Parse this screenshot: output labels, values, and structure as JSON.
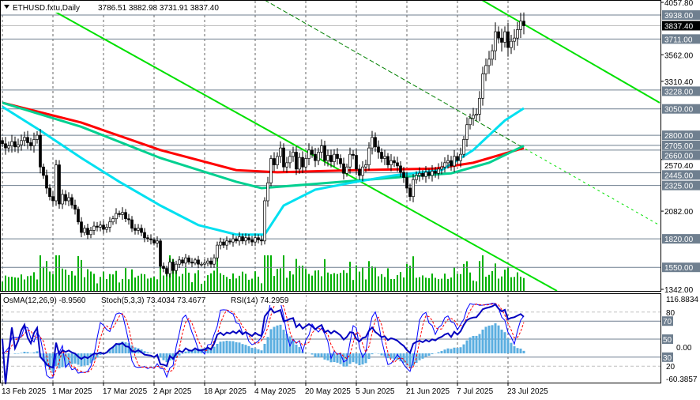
{
  "header": {
    "symbol_label": "ETHUSD.fxtu,Daily",
    "ohlc": "3786.51 3882.98 3731.91 3837.40",
    "dropdown_icon": "triangle-down-icon"
  },
  "indicator_header": {
    "osma": "OsMA(12,26,9) -8.9560",
    "stoch": "Stoch(5,3,3) 73.4034 73.4677",
    "rsi": "RSI(14) 74.2959"
  },
  "chart_data": {
    "type": "candlestick",
    "title": "",
    "ylim": [
      1342.0,
      4057.8
    ],
    "price_ticks": [
      "4057.80",
      "3562.00",
      "3310.40",
      "2570.40",
      "2082.00",
      "1342.00"
    ],
    "date_ticks": [
      {
        "day": 0,
        "label": "13 Feb 2025"
      },
      {
        "day": 16,
        "label": "1 Mar 2025"
      },
      {
        "day": 32,
        "label": "17 Mar 2025"
      },
      {
        "day": 48,
        "label": "2 Apr 2025"
      },
      {
        "day": 64,
        "label": "18 Apr 2025"
      },
      {
        "day": 80,
        "label": "4 May 2025"
      },
      {
        "day": 96,
        "label": "20 May 2025"
      },
      {
        "day": 112,
        "label": "5 Jun 2025"
      },
      {
        "day": 128,
        "label": "21 Jun 2025"
      },
      {
        "day": 144,
        "label": "7 Jul 2025"
      },
      {
        "day": 160,
        "label": "23 Jul 2025"
      }
    ],
    "current_price": "3837.40",
    "levels": [
      "3938.00",
      "3711.00",
      "3228.00",
      "3050.00",
      "2800.00",
      "2705.00",
      "2660.00",
      "2445.00",
      "2325.00",
      "1820.00",
      "1550.00"
    ],
    "closes": [
      2720,
      2680,
      2700,
      2740,
      2690,
      2710,
      2750,
      2780,
      2730,
      2700,
      2760,
      2800,
      2500,
      2420,
      2300,
      2220,
      2180,
      2520,
      2150,
      2240,
      2180,
      2210,
      2140,
      2100,
      1980,
      1880,
      1920,
      1860,
      1900,
      1940,
      1930,
      1950,
      1910,
      1930,
      1980,
      2010,
      2060,
      2050,
      2070,
      2010,
      2000,
      1920,
      1900,
      1920,
      1880,
      1830,
      1820,
      1810,
      1780,
      1800,
      1560,
      1540,
      1490,
      1600,
      1520,
      1580,
      1620,
      1590,
      1640,
      1600,
      1590,
      1620,
      1580,
      1580,
      1590,
      1610,
      1580,
      1640,
      1760,
      1790,
      1760,
      1800,
      1790,
      1820,
      1800,
      1840,
      1800,
      1830,
      1810,
      1790,
      1830,
      1810,
      1800,
      2180,
      2350,
      2580,
      2520,
      2600,
      2680,
      2500,
      2540,
      2600,
      2640,
      2480,
      2590,
      2500,
      2580,
      2660,
      2620,
      2560,
      2640,
      2700,
      2560,
      2610,
      2550,
      2620,
      2580,
      2530,
      2440,
      2500,
      2620,
      2610,
      2480,
      2420,
      2500,
      2520,
      2680,
      2780,
      2690,
      2640,
      2580,
      2600,
      2520,
      2560,
      2540,
      2510,
      2450,
      2400,
      2300,
      2220,
      2380,
      2420,
      2440,
      2410,
      2450,
      2420,
      2460,
      2440,
      2480,
      2500,
      2540,
      2560,
      2510,
      2600,
      2560,
      2620,
      2760,
      2900,
      2960,
      2990,
      3000,
      3150,
      3380,
      3460,
      3520,
      3600,
      3780,
      3720,
      3680,
      3780,
      3630,
      3690,
      3720,
      3800,
      3880,
      3837.4
    ],
    "first_open": 2750,
    "moving_averages": [
      {
        "color": "#ff0000",
        "points": [
          [
            0,
            3108
          ],
          [
            25,
            2920
          ],
          [
            50,
            2660
          ],
          [
            74,
            2470
          ],
          [
            87,
            2450
          ],
          [
            112,
            2470
          ],
          [
            137,
            2485
          ],
          [
            149,
            2540
          ],
          [
            165,
            2680
          ]
        ]
      },
      {
        "color": "#00d090",
        "points": [
          [
            0,
            3108
          ],
          [
            25,
            2880
          ],
          [
            50,
            2585
          ],
          [
            74,
            2360
          ],
          [
            82,
            2300
          ],
          [
            99,
            2340
          ],
          [
            124,
            2400
          ],
          [
            142,
            2440
          ],
          [
            154,
            2540
          ],
          [
            165,
            2700
          ]
        ]
      },
      {
        "color": "#00e0f0",
        "points": [
          [
            0,
            3070
          ],
          [
            12,
            2845
          ],
          [
            25,
            2585
          ],
          [
            37,
            2360
          ],
          [
            50,
            2135
          ],
          [
            62,
            1950
          ],
          [
            74,
            1860
          ],
          [
            83,
            1860
          ],
          [
            89,
            2135
          ],
          [
            99,
            2285
          ],
          [
            112,
            2360
          ],
          [
            124,
            2420
          ],
          [
            139,
            2470
          ],
          [
            149,
            2660
          ],
          [
            159,
            2940
          ],
          [
            165,
            3055
          ]
        ]
      }
    ],
    "trendlines": [
      {
        "color": "#00e000",
        "style": "solid",
        "from": [
          16.75,
          3968
        ],
        "to": [
          175.5,
          1327
        ]
      },
      {
        "color": "#00e000",
        "style": "solid",
        "from": [
          151.75,
          4080
        ],
        "to": [
          208,
          3108
        ]
      },
      {
        "color": "#008000",
        "style": "dashed",
        "from": [
          83,
          4080
        ],
        "to": [
          164,
          2696
        ]
      },
      {
        "color": "#00e000",
        "style": "dotted",
        "from": [
          164,
          2696
        ],
        "to": [
          208,
          1948
        ]
      }
    ],
    "indicator_axis": [
      "116.8834",
      "80",
      "70",
      "50",
      "0.00",
      "30",
      "20",
      "-60.3857"
    ],
    "indicator_levels": [
      "70",
      "50",
      "30"
    ],
    "colors": {
      "bull": "#ffffff",
      "bear": "#000000",
      "volume": "#00b000",
      "osma": "#5aaee0",
      "stoch_main": "#0000ff",
      "stoch_signal": "#ff0000",
      "rsi": "#0000c0",
      "level_box": "#6f7f8f"
    }
  }
}
